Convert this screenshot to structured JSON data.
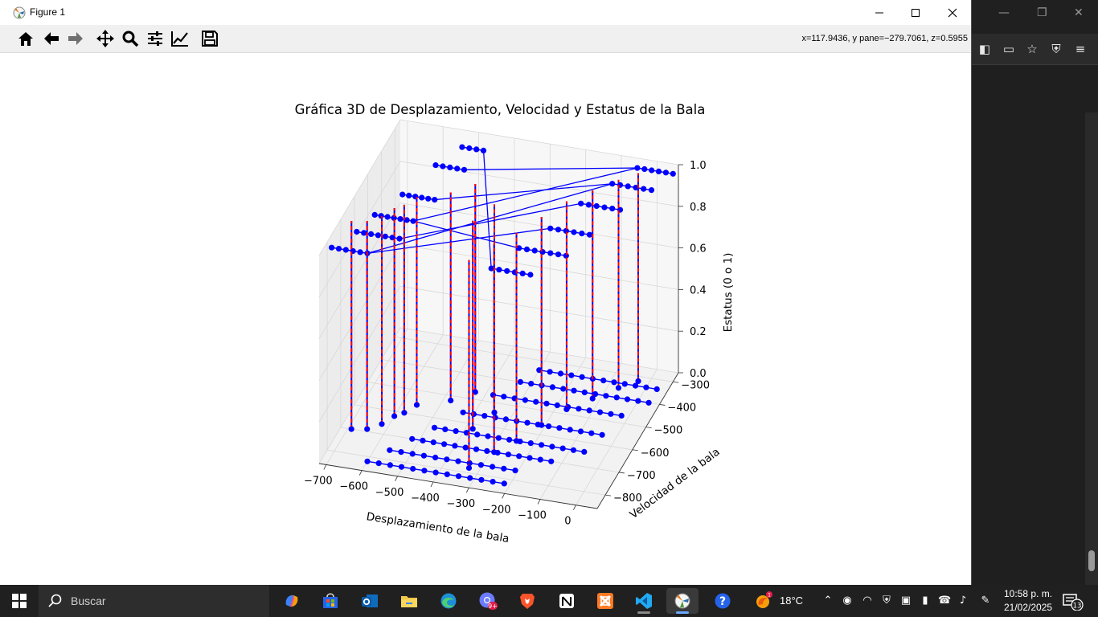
{
  "window": {
    "title": "Figure 1",
    "minimize_icon": "minimize-icon",
    "maximize_icon": "maximize-icon",
    "close_icon": "close-icon"
  },
  "toolbar": {
    "buttons": [
      "home-icon",
      "back-icon",
      "forward-icon",
      "pan-icon",
      "zoom-icon",
      "configure-subplots-icon",
      "edit-axes-icon",
      "save-icon"
    ],
    "coordinates": "x=117.9436, y pane=−279.7061, z=0.5955"
  },
  "chart_data": {
    "type": "line",
    "title": "Gráfica 3D de Desplazamiento, Velocidad y Estatus de la Bala",
    "xlabel": "Desplazamiento de la bala",
    "ylabel": "Velocidad de la bala",
    "zlabel": "Estatus (0 o 1)",
    "xticks": [
      "−700",
      "−600",
      "−500",
      "−400",
      "−300",
      "−200",
      "−100",
      "0"
    ],
    "yticks": [
      "−800",
      "−700",
      "−600",
      "−500",
      "−400",
      "−300"
    ],
    "zticks": [
      "0.0",
      "0.2",
      "0.4",
      "0.6",
      "0.8",
      "1.0"
    ],
    "xlim": [
      -720,
      60
    ],
    "ylim": [
      -860,
      -260
    ],
    "zlim": [
      0,
      1
    ],
    "grid": true,
    "marker_color": "#0000ff",
    "line_color": "#0000ff",
    "drop_line_color": "#ff0000"
  },
  "taskbar": {
    "search_placeholder": "Buscar",
    "weather_temp": "18°C",
    "weather_badge": "1",
    "clock_time": "10:58 p. m.",
    "clock_date": "21/02/2025",
    "notification_count": "13",
    "app_badge": "9+"
  },
  "colors": {
    "taskbar_bg": "#202020",
    "toolbar_bg": "#f0f0f0"
  }
}
